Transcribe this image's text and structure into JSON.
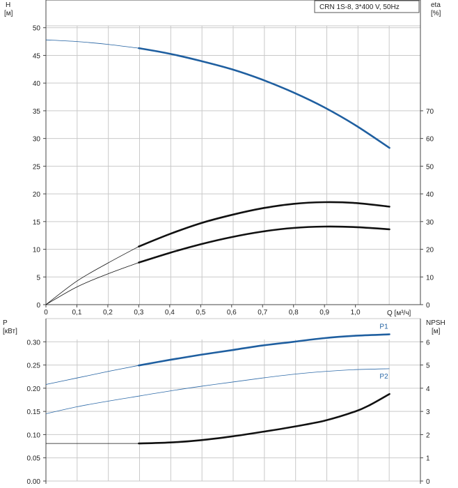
{
  "chart_data": [
    {
      "type": "line",
      "panel": "top",
      "title": "CRN 1S-8, 3*400 V, 50Hz",
      "xlabel": "Q [м³/ч]",
      "x_ticks": [
        "0",
        "0,1",
        "0,2",
        "0,3",
        "0,4",
        "0,5",
        "0,6",
        "0,7",
        "0,8",
        "0,9",
        "1,0"
      ],
      "xlim": [
        0,
        1.21
      ],
      "y_left": {
        "label_line1": "H",
        "label_line2": "[м]",
        "ticks": [
          "0",
          "5",
          "10",
          "15",
          "20",
          "25",
          "30",
          "35",
          "40",
          "45",
          "50"
        ],
        "ylim": [
          0,
          55
        ]
      },
      "y_right": {
        "label_line1": "eta",
        "label_line2": "[%]",
        "ticks": [
          "0",
          "10",
          "20",
          "30",
          "40",
          "50",
          "60",
          "70"
        ],
        "ylim": [
          0,
          110
        ]
      },
      "grid": true,
      "series": [
        {
          "id": "H",
          "axis": "left",
          "color": "#1f5fa0",
          "x": [
            0,
            0.1,
            0.2,
            0.3,
            0.4,
            0.5,
            0.6,
            0.7,
            0.8,
            0.9,
            1.0,
            1.11
          ],
          "y": [
            47.8,
            47.5,
            47.0,
            46.3,
            45.3,
            44.0,
            42.5,
            40.6,
            38.3,
            35.6,
            32.4,
            28.3
          ],
          "thin_until": 0.3
        },
        {
          "id": "eta_total",
          "axis": "right",
          "color": "#111111",
          "x": [
            0,
            0.1,
            0.2,
            0.3,
            0.4,
            0.5,
            0.6,
            0.7,
            0.8,
            0.9,
            1.0,
            1.11
          ],
          "y": [
            0,
            8.5,
            15.0,
            21.0,
            25.5,
            29.4,
            32.4,
            34.8,
            36.4,
            37.0,
            36.7,
            35.4
          ],
          "thin_until": 0.3
        },
        {
          "id": "eta_pump",
          "axis": "right",
          "color": "#111111",
          "x": [
            0,
            0.1,
            0.2,
            0.3,
            0.4,
            0.5,
            0.6,
            0.7,
            0.8,
            0.9,
            1.0,
            1.11
          ],
          "y": [
            0,
            6.4,
            11.1,
            15.2,
            18.7,
            21.8,
            24.4,
            26.4,
            27.7,
            28.2,
            28.0,
            27.2
          ],
          "thin_until": 0.3
        }
      ]
    },
    {
      "type": "line",
      "panel": "bottom",
      "xlim": [
        0,
        1.21
      ],
      "y_left": {
        "label_line1": "P",
        "label_line2": "[кВт]",
        "ticks": [
          "0.00",
          "0.05",
          "0.10",
          "0.15",
          "0.20",
          "0.25",
          "0.30"
        ],
        "ylim": [
          0,
          0.35
        ]
      },
      "y_right": {
        "label_line1": "NPSH",
        "label_line2": "[м]",
        "ticks": [
          "0",
          "1",
          "2",
          "3",
          "4",
          "5",
          "6"
        ],
        "ylim": [
          0,
          7
        ]
      },
      "grid": true,
      "series": [
        {
          "id": "P1",
          "name": "P1",
          "axis": "left",
          "color": "#1f5fa0",
          "x": [
            0,
            0.1,
            0.2,
            0.3,
            0.4,
            0.5,
            0.6,
            0.7,
            0.8,
            0.9,
            1.0,
            1.11
          ],
          "y": [
            0.208,
            0.222,
            0.236,
            0.249,
            0.261,
            0.272,
            0.282,
            0.292,
            0.3,
            0.308,
            0.313,
            0.316
          ],
          "thin_until": 0.3
        },
        {
          "id": "P2",
          "name": "P2",
          "axis": "left",
          "color": "#2d6aa8",
          "x": [
            0,
            0.1,
            0.2,
            0.3,
            0.4,
            0.5,
            0.6,
            0.7,
            0.8,
            0.9,
            1.0,
            1.11
          ],
          "y": [
            0.145,
            0.16,
            0.172,
            0.183,
            0.194,
            0.204,
            0.213,
            0.222,
            0.23,
            0.236,
            0.24,
            0.242
          ],
          "thin_until": 1.2,
          "thin": true
        },
        {
          "id": "NPSH",
          "axis": "right",
          "color": "#111111",
          "x": [
            0,
            0.1,
            0.2,
            0.3,
            0.4,
            0.5,
            0.6,
            0.7,
            0.8,
            0.9,
            1.0,
            1.05,
            1.11
          ],
          "y": [
            1.62,
            1.62,
            1.62,
            1.62,
            1.66,
            1.76,
            1.92,
            2.12,
            2.34,
            2.6,
            3.0,
            3.3,
            3.75
          ],
          "thin_until": 0.3
        }
      ]
    }
  ]
}
